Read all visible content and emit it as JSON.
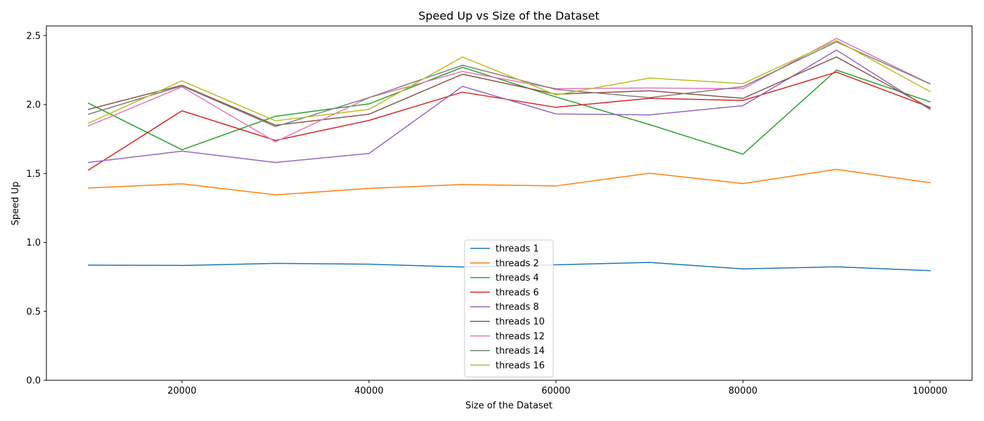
{
  "chart_data": {
    "type": "line",
    "title": "Speed Up vs Size of the Dataset",
    "xlabel": "Size of the Dataset",
    "ylabel": "Speed Up",
    "x": [
      10000,
      20000,
      30000,
      40000,
      50000,
      60000,
      70000,
      80000,
      90000,
      100000
    ],
    "xlim": [
      5500,
      104500
    ],
    "ylim": [
      0.0,
      2.57
    ],
    "xticks": [
      20000,
      40000,
      60000,
      80000,
      100000
    ],
    "yticks": [
      0.0,
      0.5,
      1.0,
      1.5,
      2.0,
      2.5
    ],
    "xtick_labels": [
      "20000",
      "40000",
      "60000",
      "80000",
      "100000"
    ],
    "ytick_labels": [
      "0.0",
      "0.5",
      "1.0",
      "1.5",
      "2.0",
      "2.5"
    ],
    "grid": false,
    "legend_position": "bottom-center",
    "series": [
      {
        "name": "threads 1",
        "color": "#1f77b4",
        "values": [
          0.835,
          0.833,
          0.848,
          0.842,
          0.822,
          0.838,
          0.855,
          0.808,
          0.823,
          0.795
        ]
      },
      {
        "name": "threads 2",
        "color": "#ff7f0e",
        "values": [
          1.395,
          1.425,
          1.345,
          1.392,
          1.42,
          1.41,
          1.502,
          1.427,
          1.53,
          1.433
        ]
      },
      {
        "name": "threads 4",
        "color": "#2ca02c",
        "values": [
          2.01,
          1.672,
          1.915,
          2.005,
          2.27,
          2.055,
          1.855,
          1.64,
          2.25,
          2.02
        ]
      },
      {
        "name": "threads 6",
        "color": "#d62728",
        "values": [
          1.525,
          1.955,
          1.74,
          1.885,
          2.09,
          1.98,
          2.045,
          2.03,
          2.235,
          1.98
        ]
      },
      {
        "name": "threads 8",
        "color": "#9467bd",
        "values": [
          1.58,
          1.662,
          1.58,
          1.645,
          2.132,
          1.932,
          1.925,
          1.992,
          2.395,
          1.965
        ]
      },
      {
        "name": "threads 10",
        "color": "#8c564b",
        "values": [
          1.965,
          2.14,
          1.85,
          1.93,
          2.22,
          2.075,
          2.1,
          2.045,
          2.345,
          1.975
        ]
      },
      {
        "name": "threads 12",
        "color": "#e377c2",
        "values": [
          1.845,
          2.128,
          1.73,
          2.05,
          2.24,
          2.115,
          2.12,
          2.115,
          2.48,
          2.15
        ]
      },
      {
        "name": "threads 14",
        "color": "#7f7f7f",
        "values": [
          1.93,
          2.135,
          1.84,
          2.05,
          2.285,
          2.11,
          2.05,
          2.13,
          2.455,
          2.15
        ]
      },
      {
        "name": "threads 16",
        "color": "#bcbd22",
        "values": [
          1.865,
          2.172,
          1.882,
          1.965,
          2.345,
          2.07,
          2.192,
          2.152,
          2.465,
          2.095
        ]
      }
    ]
  }
}
